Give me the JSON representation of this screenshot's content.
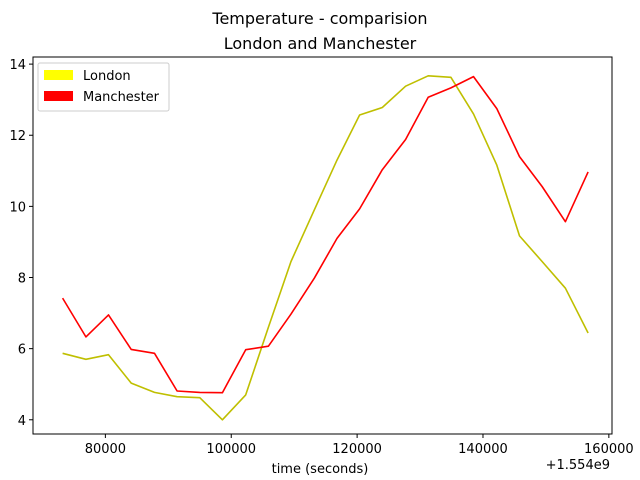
{
  "chart_data": {
    "type": "line",
    "title": "Temperature - comparision",
    "subtitle": "London and Manchester",
    "xlabel": "time (seconds)",
    "ylabel": "",
    "x_offset_label": "+1.554e9",
    "xlim": [
      68500,
      160500
    ],
    "ylim": [
      3.6,
      14.2
    ],
    "xticks": [
      80000,
      100000,
      120000,
      140000,
      160000
    ],
    "xtick_labels": [
      "80000",
      "100000",
      "120000",
      "140000",
      "160000"
    ],
    "yticks": [
      4,
      6,
      8,
      10,
      12,
      14
    ],
    "ytick_labels": [
      "4",
      "6",
      "8",
      "10",
      "12",
      "14"
    ],
    "grid": false,
    "legend_position": "top-left",
    "x": [
      73200,
      76900,
      80500,
      84100,
      87800,
      91400,
      95000,
      98600,
      102300,
      105900,
      109500,
      113200,
      116800,
      120400,
      124000,
      127700,
      131300,
      134900,
      138500,
      142200,
      145800,
      149400,
      153100,
      156700
    ],
    "series": [
      {
        "name": "London",
        "color": "#bfbf00",
        "legend_color": "#ffff00",
        "values": [
          5.87,
          5.7,
          5.83,
          5.03,
          4.77,
          4.65,
          4.62,
          4.0,
          4.7,
          6.6,
          8.45,
          9.9,
          11.3,
          12.57,
          12.78,
          13.38,
          13.67,
          13.63,
          12.6,
          11.16,
          9.17,
          8.45,
          7.7,
          6.44
        ]
      },
      {
        "name": "Manchester",
        "color": "#ff0000",
        "legend_color": "#ff0000",
        "values": [
          7.42,
          6.33,
          6.95,
          5.98,
          5.87,
          4.81,
          4.77,
          4.76,
          5.97,
          6.07,
          6.97,
          7.98,
          9.1,
          9.93,
          11.03,
          11.88,
          13.07,
          13.33,
          13.65,
          12.75,
          11.4,
          10.56,
          9.57,
          10.97
        ]
      }
    ]
  }
}
